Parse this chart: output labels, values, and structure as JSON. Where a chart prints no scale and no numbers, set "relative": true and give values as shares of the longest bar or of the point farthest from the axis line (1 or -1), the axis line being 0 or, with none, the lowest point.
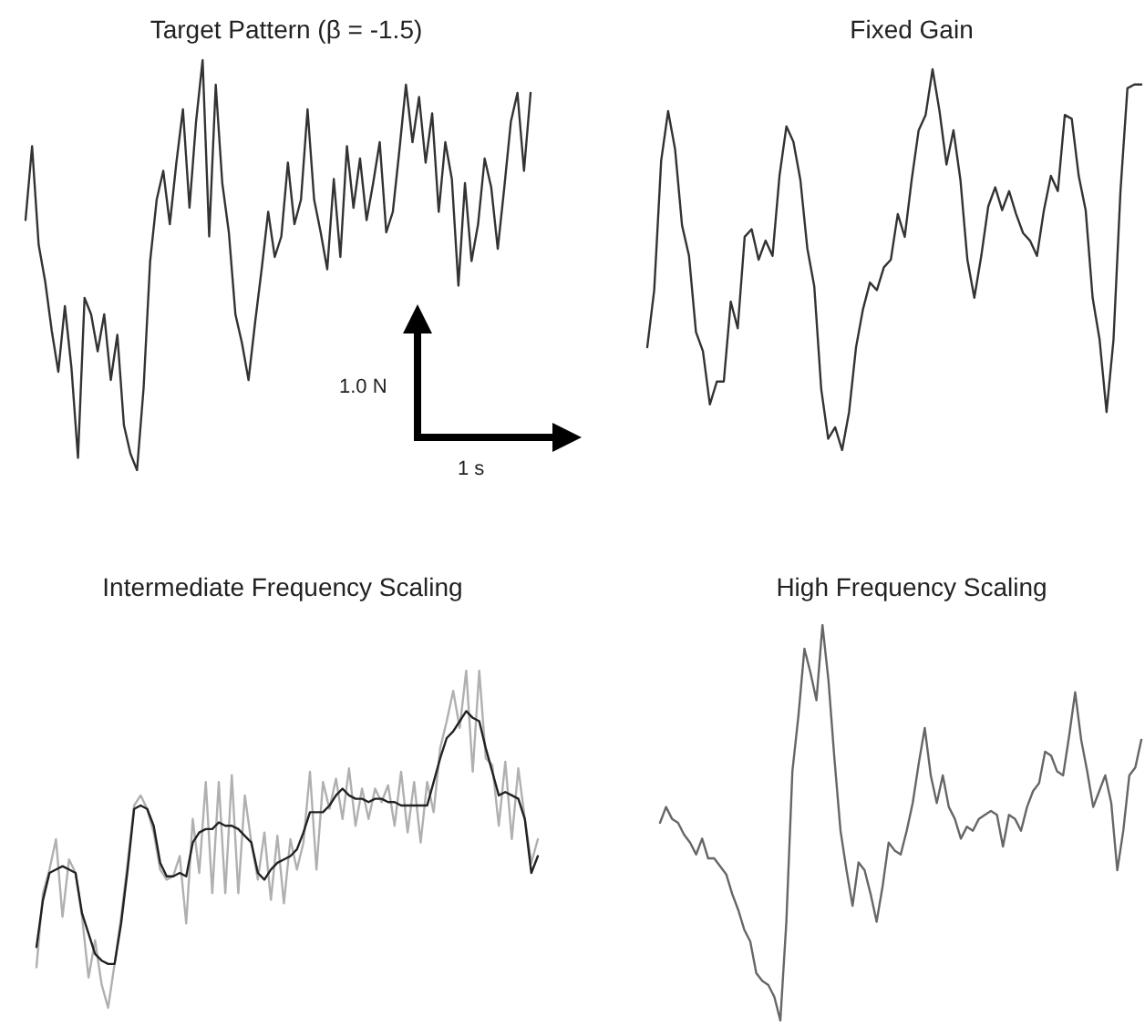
{
  "chart_data": [
    {
      "type": "line",
      "title": "Target Pattern (β = -1.5)",
      "relative": true,
      "annotations": [
        "1.0 N",
        "1 s"
      ],
      "categories": [
        null,
        null,
        null,
        null,
        null,
        null,
        null,
        null,
        null,
        null,
        null,
        null,
        null,
        null,
        null,
        null,
        null,
        null,
        null,
        null,
        null,
        null,
        null,
        null,
        null,
        null,
        null,
        null,
        null,
        null,
        null,
        null,
        null,
        null,
        null,
        null,
        null,
        null,
        null,
        null,
        null,
        null,
        null,
        null,
        null,
        null,
        null,
        null,
        null,
        null,
        null,
        null,
        null,
        null,
        null,
        null,
        null,
        null,
        null,
        null,
        null,
        null,
        null,
        null,
        null,
        null,
        null,
        null,
        null,
        null,
        null,
        null,
        null,
        null,
        null,
        null,
        null,
        null
      ],
      "series": [
        {
          "color": "#333333",
          "values": [
            0.61,
            0.79,
            0.55,
            0.46,
            0.34,
            0.24,
            0.4,
            0.25,
            0.03,
            0.42,
            0.38,
            0.29,
            0.38,
            0.22,
            0.33,
            0.11,
            0.04,
            0,
            0.2,
            0.51,
            0.66,
            0.73,
            0.6,
            0.75,
            0.88,
            0.64,
            0.85,
            1,
            0.57,
            0.94,
            0.7,
            0.58,
            0.38,
            0.31,
            0.22,
            0.36,
            0.49,
            0.63,
            0.52,
            0.57,
            0.75,
            0.6,
            0.66,
            0.88,
            0.66,
            0.58,
            0.49,
            0.71,
            0.52,
            0.79,
            0.64,
            0.76,
            0.61,
            0.7,
            0.8,
            0.58,
            0.63,
            0.78,
            0.94,
            0.8,
            0.91,
            0.75,
            0.87,
            0.63,
            0.8,
            0.71,
            0.45,
            0.7,
            0.51,
            0.6,
            0.76,
            0.69,
            0.54,
            0.69,
            0.85,
            0.92,
            0.73,
            0.92
          ]
        }
      ]
    },
    {
      "type": "line",
      "title": "Fixed Gain",
      "relative": true,
      "categories": [
        null,
        null,
        null,
        null,
        null,
        null,
        null,
        null,
        null,
        null,
        null,
        null,
        null,
        null,
        null,
        null,
        null,
        null,
        null,
        null,
        null,
        null,
        null,
        null,
        null,
        null,
        null,
        null,
        null,
        null,
        null,
        null,
        null,
        null,
        null,
        null,
        null,
        null,
        null,
        null,
        null,
        null,
        null,
        null,
        null,
        null,
        null,
        null,
        null,
        null,
        null,
        null,
        null,
        null,
        null,
        null,
        null,
        null,
        null,
        null,
        null,
        null,
        null,
        null,
        null,
        null,
        null,
        null,
        null,
        null,
        null,
        null
      ],
      "series": [
        {
          "color": "#333333",
          "values": [
            0.27,
            0.42,
            0.76,
            0.89,
            0.79,
            0.59,
            0.51,
            0.31,
            0.26,
            0.12,
            0.18,
            0.18,
            0.39,
            0.32,
            0.56,
            0.58,
            0.5,
            0.55,
            0.51,
            0.72,
            0.85,
            0.81,
            0.71,
            0.53,
            0.43,
            0.16,
            0.03,
            0.06,
            0,
            0.1,
            0.27,
            0.37,
            0.44,
            0.42,
            0.48,
            0.5,
            0.62,
            0.56,
            0.71,
            0.84,
            0.88,
            1,
            0.89,
            0.75,
            0.84,
            0.71,
            0.5,
            0.4,
            0.51,
            0.64,
            0.69,
            0.63,
            0.68,
            0.62,
            0.57,
            0.55,
            0.51,
            0.63,
            0.72,
            0.68,
            0.88,
            0.87,
            0.72,
            0.63,
            0.4,
            0.29,
            0.1,
            0.29,
            0.68,
            0.95,
            0.96,
            0.96
          ]
        }
      ]
    },
    {
      "type": "line",
      "title": "Intermediate Frequency Scaling",
      "relative": true,
      "categories": [
        null,
        null,
        null,
        null,
        null,
        null,
        null,
        null,
        null,
        null,
        null,
        null,
        null,
        null,
        null,
        null,
        null,
        null,
        null,
        null,
        null,
        null,
        null,
        null,
        null,
        null,
        null,
        null,
        null,
        null,
        null,
        null,
        null,
        null,
        null,
        null,
        null,
        null,
        null,
        null,
        null,
        null,
        null,
        null,
        null,
        null,
        null,
        null,
        null,
        null,
        null,
        null,
        null,
        null,
        null,
        null,
        null,
        null,
        null,
        null,
        null,
        null,
        null,
        null,
        null,
        null,
        null,
        null,
        null,
        null,
        null,
        null,
        null,
        null,
        null,
        null,
        null,
        null
      ],
      "series": [
        {
          "color": "#b0b0b0",
          "values": [
            0.12,
            0.34,
            0.41,
            0.5,
            0.27,
            0.44,
            0.4,
            0.27,
            0.09,
            0.2,
            0.07,
            0,
            0.13,
            0.27,
            0.43,
            0.6,
            0.63,
            0.59,
            0.52,
            0.41,
            0.38,
            0.39,
            0.45,
            0.25,
            0.56,
            0.4,
            0.67,
            0.34,
            0.67,
            0.34,
            0.69,
            0.34,
            0.63,
            0.49,
            0.38,
            0.52,
            0.32,
            0.51,
            0.31,
            0.5,
            0.41,
            0.49,
            0.7,
            0.41,
            0.67,
            0.59,
            0.68,
            0.56,
            0.71,
            0.54,
            0.65,
            0.56,
            0.65,
            0.61,
            0.66,
            0.54,
            0.7,
            0.52,
            0.67,
            0.49,
            0.67,
            0.58,
            0.77,
            0.85,
            0.94,
            0.83,
            1,
            0.7,
            1,
            0.74,
            0.72,
            0.54,
            0.73,
            0.5,
            0.71,
            0.56,
            0.43,
            0.5
          ]
        },
        {
          "color": "#222222",
          "values": [
            0.18,
            0.32,
            0.4,
            0.41,
            0.42,
            0.41,
            0.4,
            0.28,
            0.22,
            0.16,
            0.14,
            0.13,
            0.13,
            0.25,
            0.41,
            0.59,
            0.6,
            0.59,
            0.54,
            0.43,
            0.39,
            0.39,
            0.4,
            0.39,
            0.49,
            0.52,
            0.53,
            0.53,
            0.55,
            0.54,
            0.54,
            0.53,
            0.51,
            0.49,
            0.4,
            0.38,
            0.41,
            0.43,
            0.44,
            0.45,
            0.47,
            0.52,
            0.58,
            0.58,
            0.58,
            0.6,
            0.63,
            0.65,
            0.63,
            0.62,
            0.62,
            0.61,
            0.62,
            0.62,
            0.61,
            0.61,
            0.6,
            0.6,
            0.6,
            0.6,
            0.6,
            0.67,
            0.74,
            0.8,
            0.82,
            0.85,
            0.88,
            0.86,
            0.85,
            0.77,
            0.7,
            0.63,
            0.64,
            0.63,
            0.62,
            0.56,
            0.4,
            0.45
          ]
        }
      ]
    },
    {
      "type": "line",
      "title": "High Frequency Scaling",
      "relative": true,
      "categories": [
        null,
        null,
        null,
        null,
        null,
        null,
        null,
        null,
        null,
        null,
        null,
        null,
        null,
        null,
        null,
        null,
        null,
        null,
        null,
        null,
        null,
        null,
        null,
        null,
        null,
        null,
        null,
        null,
        null,
        null,
        null,
        null,
        null,
        null,
        null,
        null,
        null,
        null,
        null,
        null,
        null,
        null,
        null,
        null,
        null,
        null,
        null,
        null,
        null,
        null,
        null,
        null,
        null,
        null,
        null,
        null,
        null,
        null,
        null,
        null,
        null,
        null,
        null,
        null,
        null,
        null,
        null,
        null,
        null,
        null,
        null,
        null,
        null,
        null,
        null,
        null,
        null,
        null,
        null,
        null,
        null
      ],
      "series": [
        {
          "color": "#666666",
          "values": [
            0.5,
            0.54,
            0.51,
            0.5,
            0.47,
            0.45,
            0.42,
            0.46,
            0.41,
            0.41,
            0.39,
            0.37,
            0.32,
            0.28,
            0.23,
            0.2,
            0.12,
            0.1,
            0.09,
            0.06,
            0,
            0.25,
            0.63,
            0.77,
            0.94,
            0.88,
            0.81,
            1,
            0.86,
            0.66,
            0.48,
            0.38,
            0.29,
            0.4,
            0.38,
            0.32,
            0.25,
            0.34,
            0.45,
            0.43,
            0.42,
            0.48,
            0.55,
            0.65,
            0.74,
            0.62,
            0.55,
            0.62,
            0.54,
            0.51,
            0.46,
            0.49,
            0.48,
            0.51,
            0.52,
            0.53,
            0.52,
            0.44,
            0.52,
            0.51,
            0.48,
            0.54,
            0.58,
            0.6,
            0.68,
            0.67,
            0.63,
            0.62,
            0.72,
            0.83,
            0.71,
            0.63,
            0.54,
            0.58,
            0.62,
            0.55,
            0.38,
            0.48,
            0.62,
            0.64,
            0.71
          ]
        }
      ]
    }
  ]
}
